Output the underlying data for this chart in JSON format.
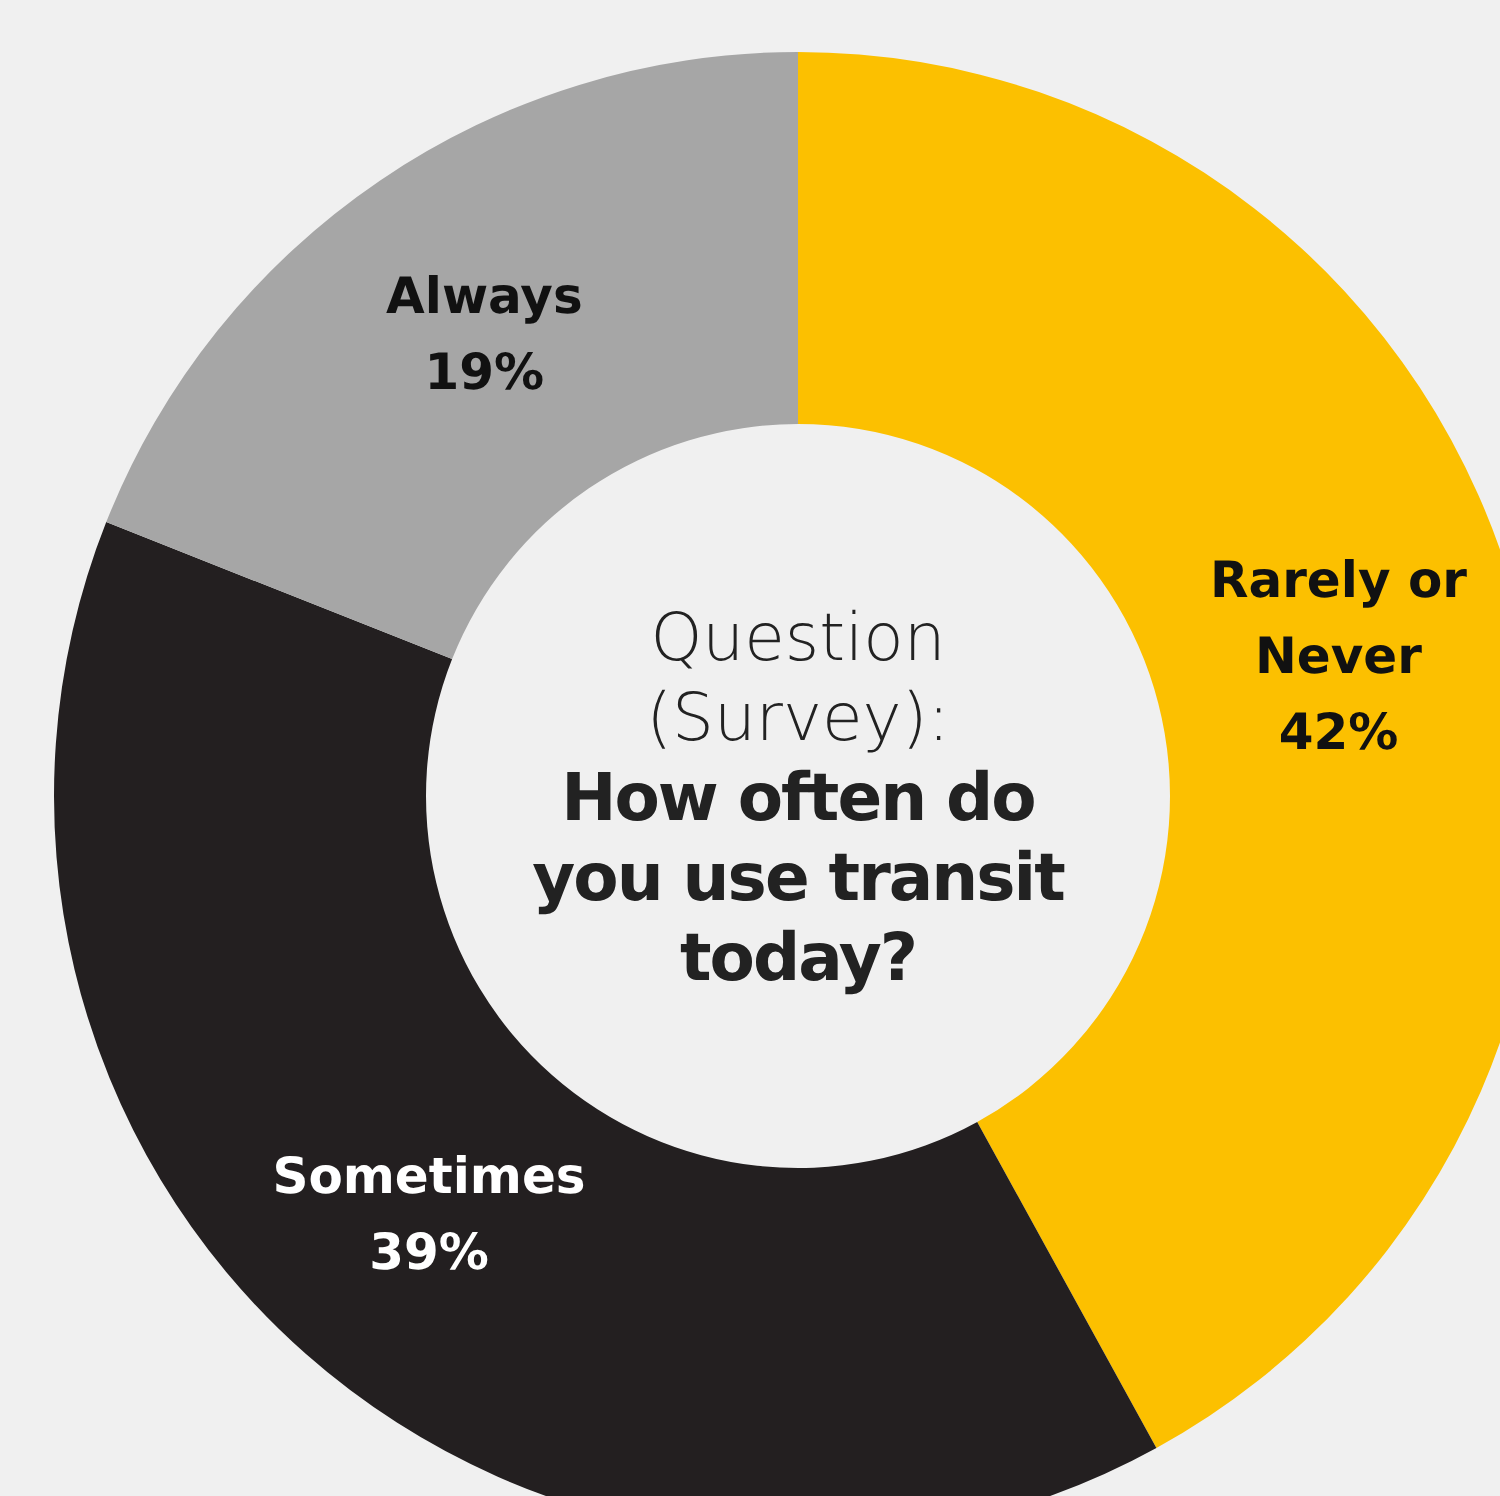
{
  "chart_data": {
    "type": "donut",
    "title": "How often do you use transit today?",
    "subtitle": "Question (Survey):",
    "categories": [
      "Rarely or Never",
      "Sometimes",
      "Always"
    ],
    "values": [
      42,
      39,
      19
    ],
    "colors": [
      "#fcc000",
      "#231f20",
      "#a6a6a6"
    ],
    "value_labels": [
      "42%",
      "39%",
      "19%"
    ]
  }
}
